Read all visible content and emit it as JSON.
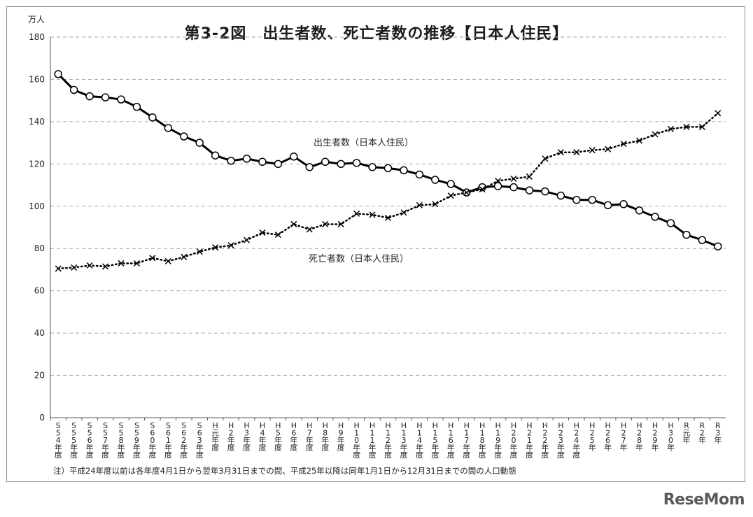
{
  "page": {
    "title": "第3-2図　出生者数、死亡者数の推移【日本人住民】",
    "unit": "万人",
    "note": "注）平成24年度以前は各年度4月1日から翌年3月31日までの間、平成25年以降は同年1月1日から12月31日までの間の人口動態",
    "brand": "ReseMom"
  },
  "chart_data": {
    "type": "line",
    "title": "第3-2図　出生者数、死亡者数の推移【日本人住民】",
    "ylabel": "万人",
    "ylim": [
      0,
      180
    ],
    "yticks": [
      0,
      20,
      40,
      60,
      80,
      100,
      120,
      140,
      160,
      180
    ],
    "grid": true,
    "categories": [
      "S54年度",
      "S55年度",
      "S56年度",
      "S57年度",
      "S58年度",
      "S59年度",
      "S60年度",
      "S61年度",
      "S62年度",
      "S63年度",
      "H元年度",
      "H2年度",
      "H3年度",
      "H4年度",
      "H5年度",
      "H6年度",
      "H7年度",
      "H8年度",
      "H9年度",
      "H10年度",
      "H11年度",
      "H12年度",
      "H13年度",
      "H14年度",
      "H15年度",
      "H16年度",
      "H17年度",
      "H18年度",
      "H19年度",
      "H20年度",
      "H21年度",
      "H22年度",
      "H23年度",
      "H24年度",
      "H25年",
      "H26年",
      "H27年",
      "H28年",
      "H29年",
      "H30年",
      "R元年",
      "R2年",
      "R3年"
    ],
    "series": [
      {
        "name": "出生者数（日本人住民）",
        "style": "solid-circle",
        "color": "#000000",
        "values": [
          162.5,
          155,
          152,
          151.5,
          150.5,
          147,
          142,
          137,
          133,
          130,
          124,
          121.5,
          122.5,
          121,
          120,
          123.5,
          118.5,
          121,
          120,
          120.5,
          118.5,
          118,
          117,
          115,
          112.5,
          110.5,
          106.5,
          109,
          109.5,
          109,
          107.5,
          107,
          105,
          103,
          103,
          100.5,
          101,
          98,
          95,
          92,
          86.5,
          84,
          81
        ]
      },
      {
        "name": "死亡者数（日本人住民）",
        "style": "dotted-x",
        "color": "#000000",
        "values": [
          70.5,
          71,
          72,
          71.5,
          73,
          73,
          75.5,
          74,
          76,
          78.5,
          80.5,
          81.5,
          84,
          87.5,
          86.5,
          91.5,
          89,
          91.5,
          91.5,
          96.5,
          96,
          94.5,
          97,
          100.5,
          101,
          105,
          106.5,
          108,
          112,
          113,
          114,
          122.5,
          125.5,
          125.5,
          126.5,
          127,
          129.5,
          131,
          134,
          136.5,
          137.5,
          137.5,
          144
        ]
      }
    ]
  }
}
